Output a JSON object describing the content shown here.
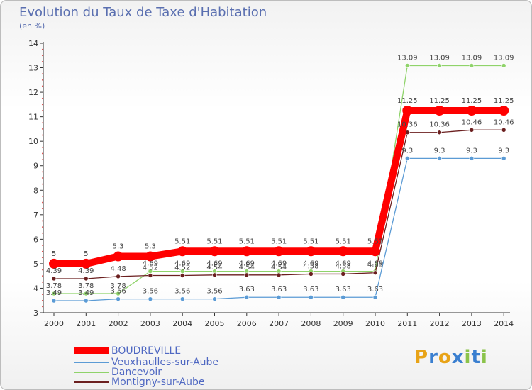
{
  "title": "Evolution du Taux de Taxe d'Habitation",
  "subtitle": "(en %)",
  "logo": [
    "P",
    "r",
    "o",
    "x",
    "i",
    "t",
    "i"
  ],
  "logo_colors": [
    "#e8a317",
    "#3a7fd0",
    "#e8a317",
    "#3a7fd0",
    "#8bc34a",
    "#3a7fd0",
    "#8bc34a"
  ],
  "chart_data": {
    "type": "line",
    "x": [
      "2000",
      "2001",
      "2002",
      "2003",
      "2004",
      "2005",
      "2006",
      "2007",
      "2008",
      "2009",
      "2010",
      "2011",
      "2012",
      "2013",
      "2014"
    ],
    "ylim": [
      3,
      14
    ],
    "yticks": [
      "3",
      "4",
      "5",
      "6",
      "7",
      "8",
      "9",
      "10",
      "11",
      "12",
      "13",
      "14"
    ],
    "grid": false,
    "legend_position": "bottom-left",
    "series": [
      {
        "name": "BOUDREVILLE",
        "color": "#ff0000",
        "values": [
          5,
          5,
          5.3,
          5.3,
          5.51,
          5.51,
          5.51,
          5.51,
          5.51,
          5.51,
          5.51,
          11.25,
          11.25,
          11.25,
          11.25
        ],
        "labels": [
          "5",
          "5",
          "5.3",
          "5.3",
          "5.51",
          "5.51",
          "5.51",
          "5.51",
          "5.51",
          "5.51",
          "5.51",
          "11.25",
          "11.25",
          "11.25",
          "11.25"
        ]
      },
      {
        "name": "Veuxhaulles-sur-Aube",
        "color": "#5b9bd5",
        "values": [
          3.49,
          3.49,
          3.56,
          3.56,
          3.56,
          3.56,
          3.63,
          3.63,
          3.63,
          3.63,
          3.63,
          9.3,
          9.3,
          9.3,
          9.3
        ],
        "labels": [
          "3.49",
          "3.49",
          "3.56",
          "3.56",
          "3.56",
          "3.56",
          "3.63",
          "3.63",
          "3.63",
          "3.63",
          "3.63",
          "9.3",
          "9.3",
          "9.3",
          "9.3"
        ]
      },
      {
        "name": "Dancevoir",
        "color": "#8fd36a",
        "values": [
          3.78,
          3.78,
          3.78,
          4.69,
          4.69,
          4.69,
          4.69,
          4.69,
          4.69,
          4.69,
          4.69,
          13.09,
          13.09,
          13.09,
          13.09
        ],
        "labels": [
          "3.78",
          "3.78",
          "3.78",
          "4.69",
          "4.69",
          "4.69",
          "4.69",
          "4.69",
          "4.69",
          "4.69",
          "4.69",
          "13.09",
          "13.09",
          "13.09",
          "13.09"
        ]
      },
      {
        "name": "Montigny-sur-Aube",
        "color": "#6b1f1f",
        "values": [
          4.39,
          4.39,
          4.48,
          4.52,
          4.52,
          4.54,
          4.54,
          4.54,
          4.58,
          4.58,
          4.63,
          10.36,
          10.36,
          10.46,
          10.46
        ],
        "labels": [
          "4.39",
          "4.39",
          "4.48",
          "4.52",
          "4.52",
          "4.54",
          "4.54",
          "4.54",
          "4.58",
          "4.58",
          "4.63",
          "10.36",
          "10.36",
          "10.46",
          "10.46"
        ]
      }
    ]
  }
}
